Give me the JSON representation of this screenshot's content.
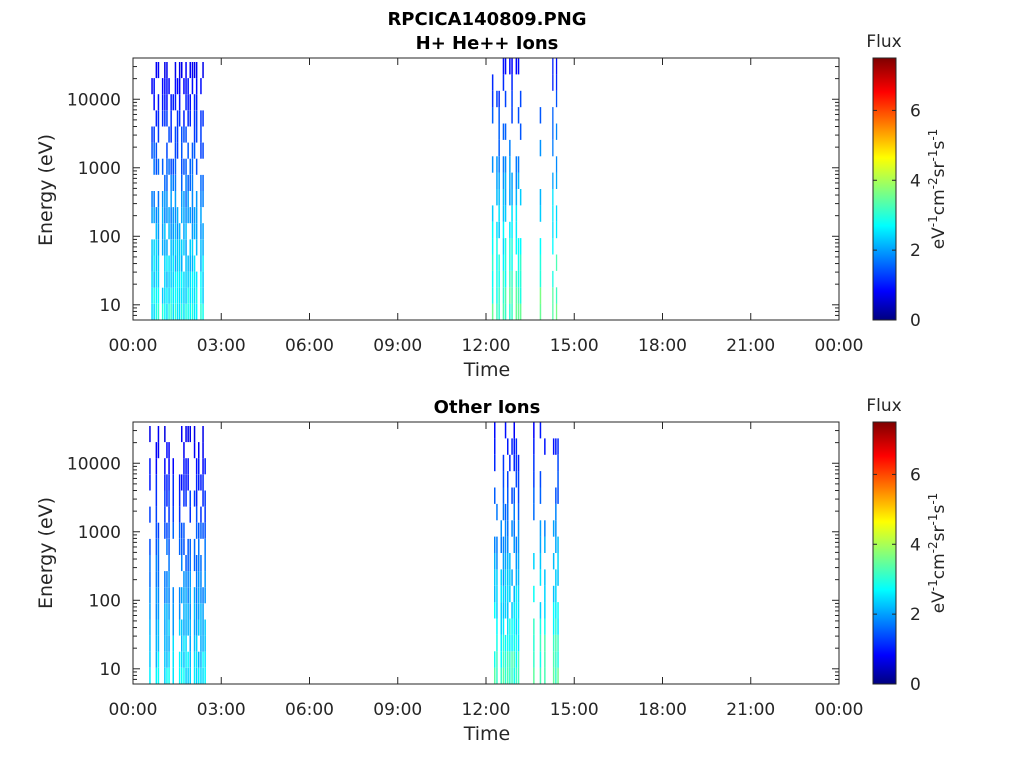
{
  "figure": {
    "title": "RPCICA140809.PNG"
  },
  "colors": {
    "colormap": [
      "#00007f",
      "#0000ff",
      "#007fff",
      "#00ffff",
      "#7fff7f",
      "#ffff00",
      "#ff7f00",
      "#ff0000",
      "#7f0000"
    ],
    "axis": "#262626",
    "background": "#ffffff"
  },
  "chart_data": [
    {
      "type": "heatmap",
      "title": "H+ He++ Ions",
      "xlabel": "Time",
      "ylabel": "Energy (eV)",
      "x_ticks": [
        "00:00",
        "03:00",
        "06:00",
        "09:00",
        "12:00",
        "15:00",
        "18:00",
        "21:00",
        "00:00"
      ],
      "xlim_hours": [
        0,
        24
      ],
      "y_scale": "log",
      "y_ticks": [
        "10",
        "100",
        "1000",
        "10000"
      ],
      "ylim": [
        6,
        40000
      ],
      "colorbar": {
        "title": "Flux",
        "label": "eV-1cm-2sr-1s-1",
        "ticks": [
          "0",
          "2",
          "4",
          "6"
        ],
        "range": [
          0,
          7.5
        ]
      },
      "bursts": [
        {
          "start_hour": 0.55,
          "end_hour": 2.5,
          "max_flux": 3.0,
          "max_energy": 35000
        },
        {
          "start_hour": 12.2,
          "end_hour": 13.3,
          "max_flux": 3.6,
          "max_energy": 40000
        },
        {
          "start_hour": 13.75,
          "end_hour": 14.05,
          "max_flux": 3.8,
          "max_energy": 40000
        },
        {
          "start_hour": 14.25,
          "end_hour": 14.5,
          "max_flux": 3.8,
          "max_energy": 40000
        }
      ]
    },
    {
      "type": "heatmap",
      "title": "Other Ions",
      "xlabel": "Time",
      "ylabel": "Energy (eV)",
      "x_ticks": [
        "00:00",
        "03:00",
        "06:00",
        "09:00",
        "12:00",
        "15:00",
        "18:00",
        "21:00",
        "00:00"
      ],
      "xlim_hours": [
        0,
        24
      ],
      "y_scale": "log",
      "y_ticks": [
        "10",
        "100",
        "1000",
        "10000"
      ],
      "ylim": [
        6,
        40000
      ],
      "colorbar": {
        "title": "Flux",
        "label": "eV-1cm-2sr-1s-1",
        "ticks": [
          "0",
          "2",
          "4",
          "6"
        ],
        "range": [
          0,
          7.5
        ]
      },
      "bursts": [
        {
          "start_hour": 0.55,
          "end_hour": 2.5,
          "max_flux": 2.8,
          "max_energy": 35000
        },
        {
          "start_hour": 12.2,
          "end_hour": 13.3,
          "max_flux": 3.4,
          "max_energy": 40000
        },
        {
          "start_hour": 13.6,
          "end_hour": 14.05,
          "max_flux": 3.6,
          "max_energy": 40000
        },
        {
          "start_hour": 14.2,
          "end_hour": 14.5,
          "max_flux": 3.6,
          "max_energy": 40000
        }
      ]
    }
  ]
}
